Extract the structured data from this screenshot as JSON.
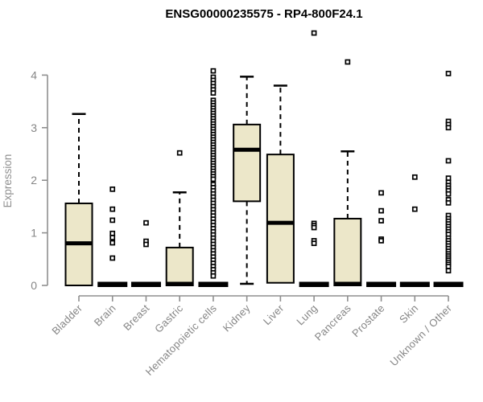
{
  "chart_data": {
    "type": "boxplot",
    "title": "ENSG00000235575 - RP4-800F24.1",
    "ylabel": "Expression",
    "xlabel": "",
    "ylim": [
      0,
      4.9
    ],
    "yticks": [
      0,
      1,
      2,
      3,
      4
    ],
    "grid": false,
    "legend": "none",
    "categories": [
      "Bladder",
      "Brain",
      "Breast",
      "Gastric",
      "Hematopoietic cells",
      "Kidney",
      "Liver",
      "Lung",
      "Pancreas",
      "Prostate",
      "Skin",
      "Unknown / Other"
    ],
    "boxes": [
      {
        "category": "Bladder",
        "low": 0,
        "q1": 0,
        "median": 0.8,
        "q3": 1.56,
        "high": 3.26,
        "outliers": []
      },
      {
        "category": "Brain",
        "low": 0,
        "q1": 0,
        "median": 0.02,
        "q3": 0.02,
        "high": 0.02,
        "outliers": [
          1.83,
          1.45,
          1.24,
          0.99,
          0.91,
          0.81,
          0.52
        ]
      },
      {
        "category": "Breast",
        "low": 0,
        "q1": 0,
        "median": 0.02,
        "q3": 0.02,
        "high": 0.02,
        "outliers": [
          1.19,
          0.84,
          0.78
        ]
      },
      {
        "category": "Gastric",
        "low": 0,
        "q1": 0,
        "median": 0.03,
        "q3": 0.72,
        "high": 1.77,
        "outliers": [
          2.52
        ]
      },
      {
        "category": "Hematopoietic cells",
        "low": 0,
        "q1": 0,
        "median": 0.02,
        "q3": 0.02,
        "high": 0.02,
        "outliers": [
          4.08,
          3.96,
          3.9,
          3.84,
          3.78,
          3.72,
          3.66,
          3.52,
          3.47,
          3.42,
          3.37,
          3.32,
          3.27,
          3.22,
          3.17,
          3.12,
          3.07,
          3.02,
          2.97,
          2.92,
          2.87,
          2.82,
          2.77,
          2.72,
          2.67,
          2.62,
          2.57,
          2.52,
          2.47,
          2.42,
          2.37,
          2.32,
          2.27,
          2.22,
          2.17,
          2.12,
          2.07,
          2.02,
          1.92,
          1.86,
          1.8,
          1.74,
          1.68,
          1.62,
          1.56,
          1.5,
          1.44,
          1.38,
          1.32,
          1.26,
          1.2,
          1.14,
          1.08,
          1.02,
          0.96,
          0.9,
          0.84,
          0.78,
          0.72,
          0.66,
          0.6,
          0.54,
          0.48,
          0.42,
          0.36,
          0.3,
          0.24,
          0.18
        ]
      },
      {
        "category": "Kidney",
        "low": 0.03,
        "q1": 1.6,
        "median": 2.58,
        "q3": 3.06,
        "high": 3.97,
        "outliers": []
      },
      {
        "category": "Liver",
        "low": 0.05,
        "q1": 0.05,
        "median": 1.19,
        "q3": 2.49,
        "high": 3.8,
        "outliers": []
      },
      {
        "category": "Lung",
        "low": 0,
        "q1": 0,
        "median": 0.02,
        "q3": 0.02,
        "high": 0.02,
        "outliers": [
          4.8,
          1.18,
          1.14,
          1.1,
          0.85,
          0.8
        ]
      },
      {
        "category": "Pancreas",
        "low": 0,
        "q1": 0,
        "median": 0.03,
        "q3": 1.27,
        "high": 2.55,
        "outliers": [
          4.25
        ]
      },
      {
        "category": "Prostate",
        "low": 0,
        "q1": 0,
        "median": 0.02,
        "q3": 0.02,
        "high": 0.02,
        "outliers": [
          1.76,
          1.42,
          1.23,
          0.88,
          0.85
        ]
      },
      {
        "category": "Skin",
        "low": 0,
        "q1": 0,
        "median": 0.02,
        "q3": 0.02,
        "high": 0.02,
        "outliers": [
          2.06,
          1.45
        ]
      },
      {
        "category": "Unknown / Other",
        "low": 0,
        "q1": 0,
        "median": 0.02,
        "q3": 0.02,
        "high": 0.02,
        "outliers": [
          4.03,
          3.12,
          3.06,
          3.0,
          2.37,
          2.04,
          1.96,
          1.9,
          1.85,
          1.8,
          1.74,
          1.63,
          1.57,
          1.33,
          1.27,
          1.22,
          1.17,
          1.12,
          1.07,
          1.02,
          0.97,
          0.9,
          0.85,
          0.8,
          0.75,
          0.7,
          0.65,
          0.6,
          0.56,
          0.52,
          0.48,
          0.44,
          0.4,
          0.36,
          0.28
        ]
      }
    ],
    "colors": {
      "box_fill": "#ECE7C9",
      "box_stroke": "#000000",
      "median": "#000000",
      "whisker": "#000000",
      "outlier_stroke": "#000000",
      "axis_line": "#8f8f8f",
      "tick_text": "#858585",
      "title_text": "#000000"
    }
  }
}
